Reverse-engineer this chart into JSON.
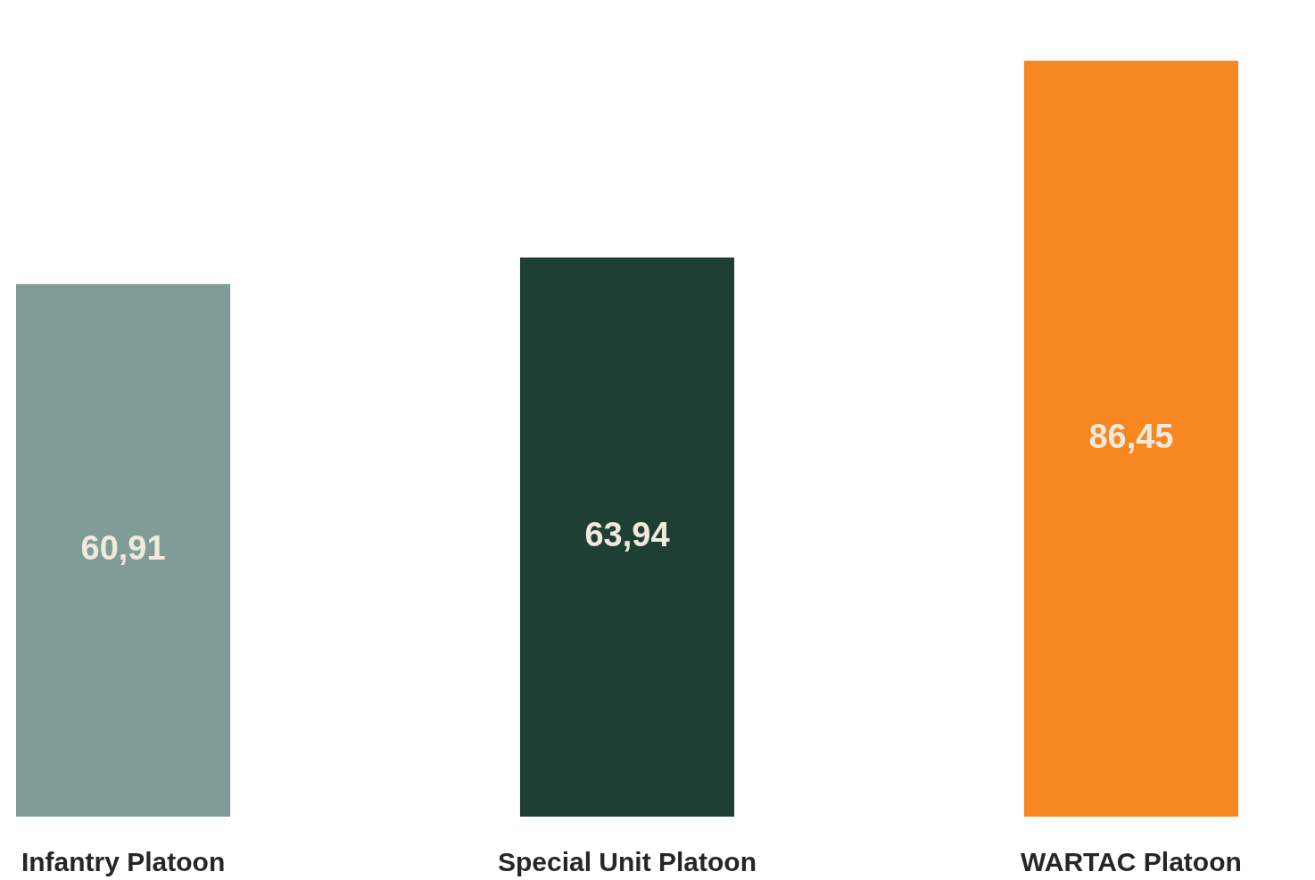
{
  "chart_data": {
    "type": "bar",
    "categories": [
      "Infantry Platoon",
      "Special Unit Platoon",
      "WARTAC Platoon"
    ],
    "values": [
      60.91,
      63.94,
      86.45
    ],
    "colors": [
      "#819b96",
      "#1f3f35",
      "#f68721"
    ],
    "value_labels": [
      "60,91",
      "63,94",
      "86,45"
    ]
  }
}
